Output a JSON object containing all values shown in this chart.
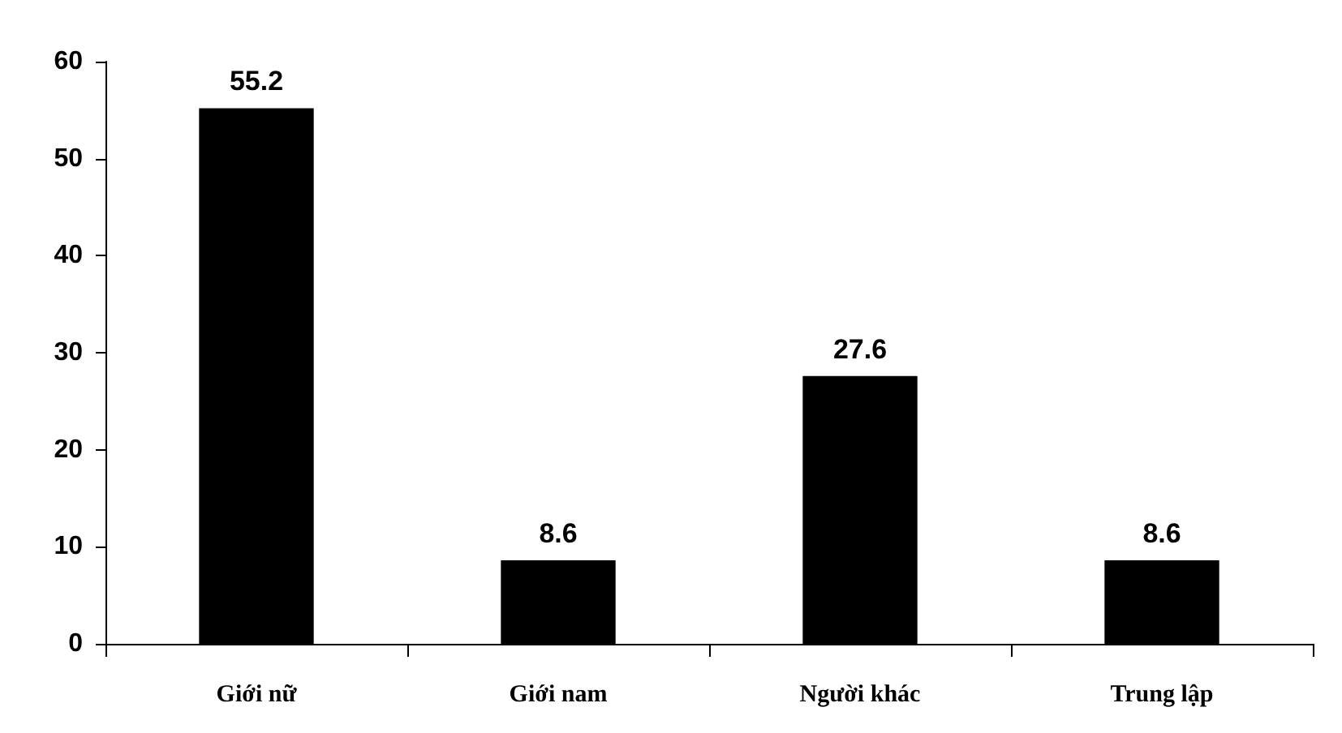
{
  "chart_data": {
    "type": "bar",
    "categories": [
      "Giới nữ",
      "Giới nam",
      "Người khác",
      "Trung lập"
    ],
    "values": [
      55.2,
      8.6,
      27.6,
      8.6
    ],
    "color": "#000000",
    "ylim": [
      0,
      60
    ],
    "yticks": [
      0,
      10,
      20,
      30,
      40,
      50,
      60
    ],
    "data_labels": true,
    "grid": false
  }
}
